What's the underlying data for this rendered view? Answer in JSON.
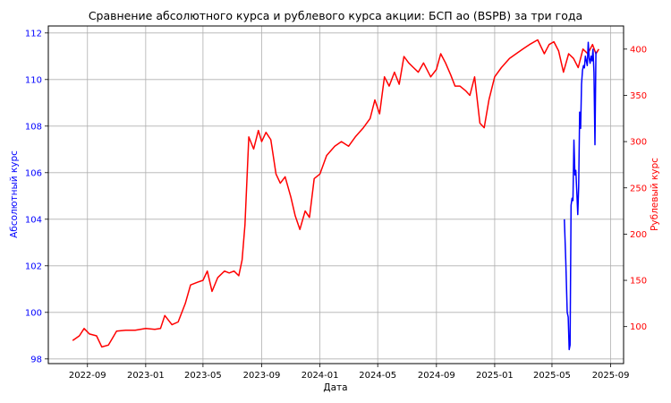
{
  "chart_data": {
    "type": "line",
    "title": "Сравнение абсолютного курса и рублевого курса акции: БСП ао (BSPB) за три года",
    "xlabel": "Дата",
    "ylabel_left": "Абсолютный курс",
    "ylabel_right": "Рублевый курс",
    "grid": true,
    "x_ticks": [
      "2022-09",
      "2023-01",
      "2023-05",
      "2023-09",
      "2024-01",
      "2024-05",
      "2024-09",
      "2025-01",
      "2025-05",
      "2025-09"
    ],
    "left_ticks": [
      "98",
      "100",
      "102",
      "104",
      "106",
      "108",
      "110",
      "112"
    ],
    "right_ticks": [
      "100",
      "150",
      "200",
      "250",
      "300",
      "350",
      "400"
    ],
    "ylim_left": [
      97.8,
      112.3
    ],
    "ylim_right": [
      60,
      425
    ],
    "xlim": [
      "2022-06-11",
      "2025-09-28"
    ],
    "colors": {
      "left_axis": "#0000ff",
      "right_axis": "#ff0000",
      "absolute_series": "#0000ff",
      "ruble_series": "#ff0000",
      "grid": "#b0b0b0"
    },
    "series": [
      {
        "axis": "right",
        "color": "#ff0000",
        "x": [
          "2022-08-01",
          "2022-08-15",
          "2022-08-25",
          "2022-09-05",
          "2022-09-20",
          "2022-10-01",
          "2022-10-15",
          "2022-11-01",
          "2022-11-20",
          "2022-12-10",
          "2023-01-01",
          "2023-01-20",
          "2023-02-01",
          "2023-02-10",
          "2023-02-25",
          "2023-03-10",
          "2023-03-25",
          "2023-04-05",
          "2023-04-20",
          "2023-05-01",
          "2023-05-10",
          "2023-05-20",
          "2023-06-01",
          "2023-06-15",
          "2023-06-25",
          "2023-07-05",
          "2023-07-15",
          "2023-07-22",
          "2023-07-28",
          "2023-08-05",
          "2023-08-15",
          "2023-08-25",
          "2023-09-01",
          "2023-09-10",
          "2023-09-20",
          "2023-10-01",
          "2023-10-10",
          "2023-10-20",
          "2023-11-01",
          "2023-11-10",
          "2023-11-20",
          "2023-12-01",
          "2023-12-10",
          "2023-12-20",
          "2024-01-01",
          "2024-01-15",
          "2024-02-01",
          "2024-02-15",
          "2024-03-01",
          "2024-03-15",
          "2024-04-01",
          "2024-04-15",
          "2024-04-25",
          "2024-05-05",
          "2024-05-15",
          "2024-05-25",
          "2024-06-05",
          "2024-06-15",
          "2024-06-25",
          "2024-07-05",
          "2024-07-15",
          "2024-07-25",
          "2024-08-05",
          "2024-08-20",
          "2024-09-01",
          "2024-09-10",
          "2024-09-20",
          "2024-10-01",
          "2024-10-10",
          "2024-10-20",
          "2024-11-01",
          "2024-11-10",
          "2024-11-20",
          "2024-12-01",
          "2024-12-10",
          "2024-12-20",
          "2025-01-01",
          "2025-01-15",
          "2025-02-01",
          "2025-02-15",
          "2025-03-01",
          "2025-03-15",
          "2025-04-01",
          "2025-04-15",
          "2025-04-25",
          "2025-05-05",
          "2025-05-15",
          "2025-05-25",
          "2025-06-05",
          "2025-06-15",
          "2025-06-25",
          "2025-07-05",
          "2025-07-15",
          "2025-07-25",
          "2025-08-01",
          "2025-08-07"
        ],
        "values": [
          85,
          90,
          98,
          92,
          90,
          78,
          80,
          95,
          96,
          96,
          98,
          97,
          98,
          112,
          102,
          105,
          125,
          145,
          148,
          150,
          160,
          138,
          153,
          160,
          158,
          160,
          155,
          172,
          210,
          305,
          292,
          312,
          300,
          310,
          302,
          265,
          255,
          262,
          240,
          220,
          205,
          225,
          218,
          260,
          265,
          285,
          295,
          300,
          295,
          305,
          315,
          325,
          345,
          330,
          370,
          360,
          375,
          362,
          392,
          385,
          380,
          375,
          385,
          370,
          378,
          395,
          385,
          372,
          360,
          360,
          355,
          350,
          370,
          320,
          315,
          345,
          370,
          380,
          390,
          395,
          400,
          405,
          410,
          395,
          405,
          408,
          398,
          375,
          395,
          390,
          380,
          400,
          395,
          405,
          395,
          400
        ]
      },
      {
        "axis": "left",
        "color": "#0000ff",
        "x": [
          "2025-05-27",
          "2025-05-30",
          "2025-06-02",
          "2025-06-04",
          "2025-06-06",
          "2025-06-08",
          "2025-06-10",
          "2025-06-12",
          "2025-06-14",
          "2025-06-16",
          "2025-06-18",
          "2025-06-20",
          "2025-06-22",
          "2025-06-24",
          "2025-06-26",
          "2025-06-28",
          "2025-06-30",
          "2025-07-02",
          "2025-07-04",
          "2025-07-06",
          "2025-07-08",
          "2025-07-10",
          "2025-07-12",
          "2025-07-14",
          "2025-07-16",
          "2025-07-18",
          "2025-07-20",
          "2025-07-22",
          "2025-07-24",
          "2025-07-26",
          "2025-07-28",
          "2025-07-30",
          "2025-08-01"
        ],
        "values": [
          104.0,
          102.2,
          100.0,
          99.8,
          98.4,
          98.6,
          104.6,
          104.9,
          104.8,
          107.4,
          105.9,
          106.1,
          105.2,
          104.2,
          105.4,
          108.6,
          107.9,
          109.8,
          110.4,
          110.6,
          110.5,
          111.0,
          110.8,
          110.6,
          111.6,
          110.9,
          110.7,
          111.0,
          110.8,
          111.3,
          110.3,
          107.2,
          111.2
        ]
      }
    ]
  }
}
